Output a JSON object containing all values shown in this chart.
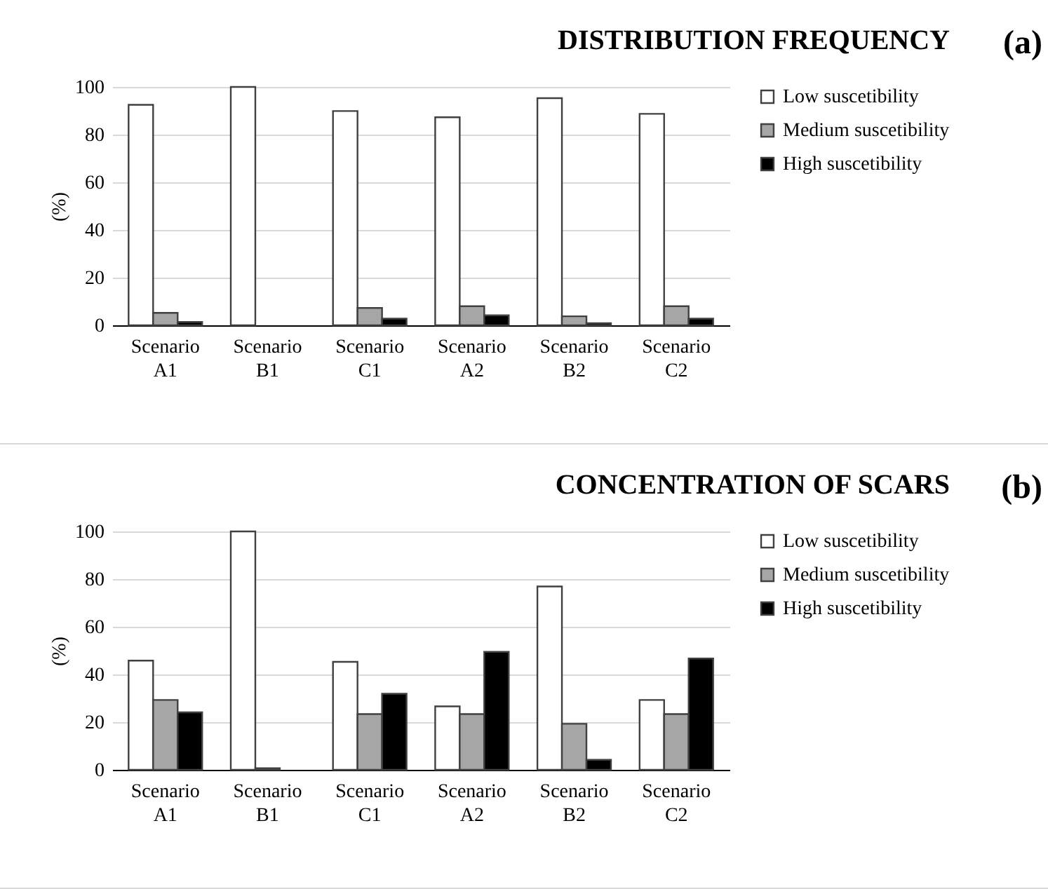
{
  "chart_data": [
    {
      "type": "bar",
      "title": "DISTRIBUTION FREQUENCY",
      "ylabel": "(%)",
      "annotations": [
        "(a)"
      ],
      "categories": [
        "Scenario A1",
        "Scenario B1",
        "Scenario C1",
        "Scenario A2",
        "Scenario B2",
        "Scenario C2"
      ],
      "series": [
        {
          "name": "Low suscetibility",
          "color": "#ffffff",
          "values": [
            92.5,
            100,
            89.9,
            87.3,
            95.3,
            88.7
          ]
        },
        {
          "name": "Medium suscetibility",
          "color": "#a6a6a6",
          "values": [
            5.2,
            0,
            7.3,
            8.0,
            3.8,
            8.0
          ]
        },
        {
          "name": "High suscetibility",
          "color": "#000000",
          "values": [
            1.4,
            0,
            2.8,
            4.2,
            0.9,
            2.8
          ]
        }
      ],
      "ylim": [
        0,
        100
      ],
      "yticks": [
        0,
        20,
        40,
        60,
        80,
        100
      ],
      "grid": "y",
      "legend": "right"
    },
    {
      "type": "bar",
      "title": "CONCENTRATION OF SCARS",
      "ylabel": "(%)",
      "annotations": [
        "(b)"
      ],
      "categories": [
        "Scenario A1",
        "Scenario B1",
        "Scenario C1",
        "Scenario A2",
        "Scenario B2",
        "Scenario C2"
      ],
      "series": [
        {
          "name": "Low suscetibility",
          "color": "#ffffff",
          "values": [
            45.8,
            100,
            45.3,
            26.6,
            76.9,
            29.3
          ]
        },
        {
          "name": "Medium suscetibility",
          "color": "#a6a6a6",
          "values": [
            29.3,
            0.7,
            23.4,
            23.4,
            19.3,
            23.4
          ]
        },
        {
          "name": "High suscetibility",
          "color": "#000000",
          "values": [
            24.1,
            0,
            31.9,
            49.5,
            4.2,
            46.7
          ]
        }
      ],
      "ylim": [
        0,
        100
      ],
      "yticks": [
        0,
        20,
        40,
        60,
        80,
        100
      ],
      "grid": "y",
      "legend": "right"
    }
  ]
}
